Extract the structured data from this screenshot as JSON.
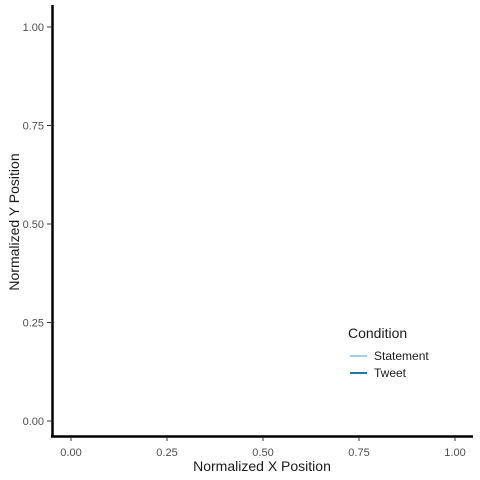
{
  "chart_data": {
    "type": "line",
    "title": "",
    "xlabel": "Normalized X Position",
    "ylabel": "Normalized Y Position",
    "xlim": [
      0,
      1
    ],
    "ylim": [
      0,
      1
    ],
    "x_ticks": [
      "0.00",
      "0.25",
      "0.50",
      "0.75",
      "1.00"
    ],
    "y_ticks": [
      "0.00",
      "0.25",
      "0.50",
      "0.75",
      "1.00"
    ],
    "grid": false,
    "legend": {
      "title": "Condition",
      "placement": "bottom-right",
      "entries": [
        {
          "name": "Statement",
          "color": "#a6cee3"
        },
        {
          "name": "Tweet",
          "color": "#1f78b4"
        }
      ]
    },
    "series": [
      {
        "name": "Statement",
        "color": "#a6cee3",
        "x": [],
        "y": []
      },
      {
        "name": "Tweet",
        "color": "#1f78b4",
        "x": [],
        "y": []
      }
    ]
  }
}
